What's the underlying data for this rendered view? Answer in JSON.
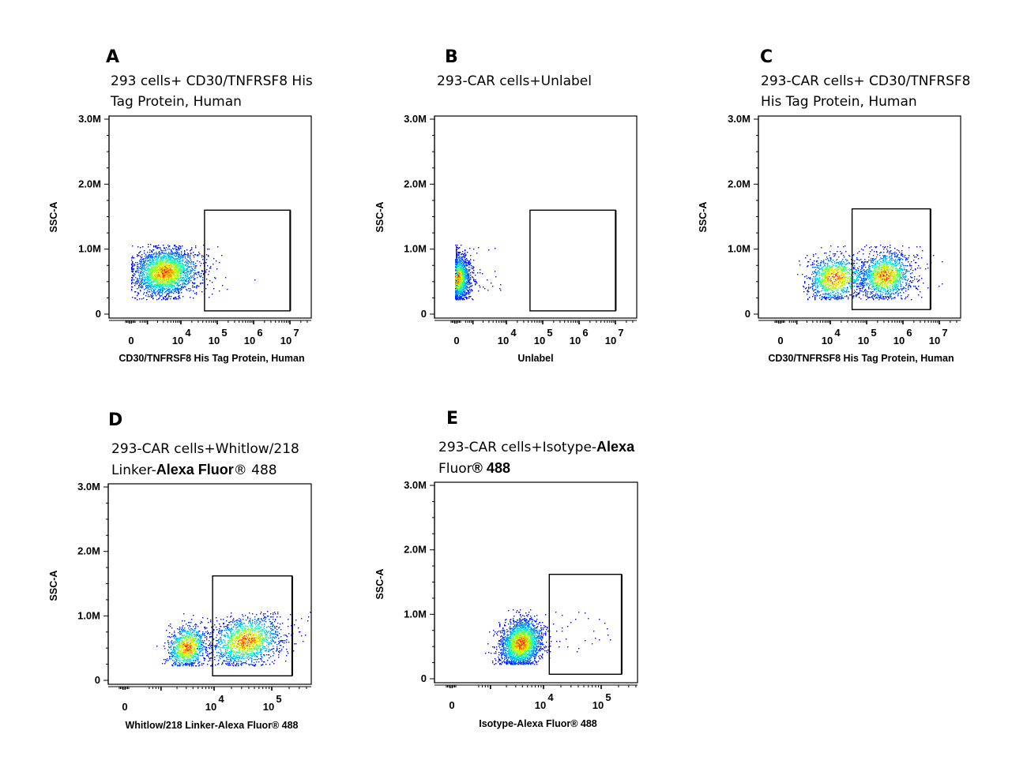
{
  "figure": {
    "type": "flow-cytometry-panel-figure"
  },
  "chart_data": [
    {
      "id": "A",
      "type": "scatter",
      "letter": "A",
      "title_lines": [
        "293 cells+ CD30/TNFRSF8 His",
        "Tag Protein, Human"
      ],
      "xlabel": "CD30/TNFRSF8 His Tag Protein, Human",
      "ylabel": "SSC-A",
      "x_scale": "biexponential",
      "x_ticks": [
        {
          "label": "0",
          "exp": ""
        },
        {
          "label": "10",
          "exp": "4"
        },
        {
          "label": "10",
          "exp": "5"
        },
        {
          "label": "10",
          "exp": "6"
        },
        {
          "label": "10",
          "exp": "7"
        }
      ],
      "y_ticks": [
        "0",
        "1.0M",
        "2.0M",
        "3.0M"
      ],
      "ylim": [
        0,
        3000000
      ],
      "gate": {
        "x_from_decade": 4.65,
        "x_to_decade": 7.0,
        "y_from": 50000,
        "y_to": 1600000
      },
      "populations": [
        {
          "center_decade": 3.4,
          "center_ssc": 650000,
          "spread_decade": 0.55,
          "spread_ssc": 180000,
          "weight": 1.0,
          "note": "negative population near 0–10^4"
        }
      ]
    },
    {
      "id": "B",
      "type": "scatter",
      "letter": "B",
      "title_lines": [
        "293-CAR cells+Unlabel"
      ],
      "xlabel": "Unlabel",
      "ylabel": "SSC-A",
      "x_scale": "biexponential",
      "x_ticks": [
        {
          "label": "0",
          "exp": ""
        },
        {
          "label": "10",
          "exp": "4"
        },
        {
          "label": "10",
          "exp": "5"
        },
        {
          "label": "10",
          "exp": "6"
        },
        {
          "label": "10",
          "exp": "7"
        }
      ],
      "y_ticks": [
        "0",
        "1.0M",
        "2.0M",
        "3.0M"
      ],
      "ylim": [
        0,
        3000000
      ],
      "gate": {
        "x_from_decade": 4.65,
        "x_to_decade": 7.0,
        "y_from": 50000,
        "y_to": 1600000
      },
      "populations": [
        {
          "center_decade": 2.2,
          "center_ssc": 560000,
          "spread_decade": 0.22,
          "spread_ssc": 170000,
          "weight": 1.0,
          "note": "unstained population at 0"
        }
      ]
    },
    {
      "id": "C",
      "type": "scatter",
      "letter": "C",
      "title_lines": [
        "293-CAR cells+ CD30/TNFRSF8",
        "His Tag Protein, Human"
      ],
      "xlabel": "CD30/TNFRSF8 His Tag Protein, Human",
      "ylabel": "SSC-A",
      "x_scale": "biexponential",
      "x_ticks": [
        {
          "label": "0",
          "exp": ""
        },
        {
          "label": "10",
          "exp": "4"
        },
        {
          "label": "10",
          "exp": "5"
        },
        {
          "label": "10",
          "exp": "6"
        },
        {
          "label": "10",
          "exp": "7"
        }
      ],
      "y_ticks": [
        "0",
        "1.0M",
        "2.0M",
        "3.0M"
      ],
      "ylim": [
        0,
        3000000
      ],
      "gate": {
        "x_from_decade": 4.6,
        "x_to_decade": 6.75,
        "y_from": 70000,
        "y_to": 1620000
      },
      "populations": [
        {
          "center_decade": 4.1,
          "center_ssc": 560000,
          "spread_decade": 0.45,
          "spread_ssc": 170000,
          "weight": 0.45,
          "note": "negative population"
        },
        {
          "center_decade": 5.5,
          "center_ssc": 600000,
          "spread_decade": 0.35,
          "spread_ssc": 180000,
          "weight": 0.55,
          "note": "positive population inside gate"
        }
      ]
    },
    {
      "id": "D",
      "type": "scatter",
      "letter": "D",
      "title_lines": [
        "293-CAR cells+Whitlow/218",
        "Linker-|Alexa Fluor|® 488"
      ],
      "xlabel": "Whitlow/218 Linker-Alexa Fluor® 488",
      "ylabel": "SSC-A",
      "x_scale": "biexponential",
      "x_ticks": [
        {
          "label": "0",
          "exp": ""
        },
        {
          "label": "10",
          "exp": "4"
        },
        {
          "label": "10",
          "exp": "5"
        }
      ],
      "y_ticks": [
        "0",
        "1.0M",
        "2.0M",
        "3.0M"
      ],
      "ylim": [
        0,
        3000000
      ],
      "gate": {
        "x_from_decade": 3.97,
        "x_to_decade": 5.35,
        "y_from": 70000,
        "y_to": 1620000
      },
      "populations": [
        {
          "center_decade": 3.45,
          "center_ssc": 520000,
          "spread_decade": 0.2,
          "spread_ssc": 170000,
          "weight": 0.4,
          "note": "negative population"
        },
        {
          "center_decade": 4.55,
          "center_ssc": 620000,
          "spread_decade": 0.3,
          "spread_ssc": 190000,
          "weight": 0.6,
          "note": "positive population inside gate"
        }
      ]
    },
    {
      "id": "E",
      "type": "scatter",
      "letter": "E",
      "title_lines": [
        "293-CAR cells+Isotype-|Alexa",
        "Fluor|® 488"
      ],
      "xlabel": "Isotype-Alexa Fluor® 488",
      "ylabel": "SSC-A",
      "x_scale": "biexponential",
      "x_ticks": [
        {
          "label": "0",
          "exp": ""
        },
        {
          "label": "10",
          "exp": "4"
        },
        {
          "label": "10",
          "exp": "5"
        }
      ],
      "y_ticks": [
        "0",
        "1.0M",
        "2.0M",
        "3.0M"
      ],
      "ylim": [
        0,
        3000000
      ],
      "gate": {
        "x_from_decade": 4.1,
        "x_to_decade": 5.35,
        "y_from": 70000,
        "y_to": 1620000
      },
      "populations": [
        {
          "center_decade": 3.55,
          "center_ssc": 560000,
          "spread_decade": 0.2,
          "spread_ssc": 180000,
          "weight": 1.0,
          "note": "isotype population mostly outside gate"
        }
      ]
    }
  ],
  "colormap": [
    "#0000ff",
    "#00a0ff",
    "#00ffd0",
    "#a0ff00",
    "#ffff00",
    "#ff8000",
    "#ff0000"
  ]
}
